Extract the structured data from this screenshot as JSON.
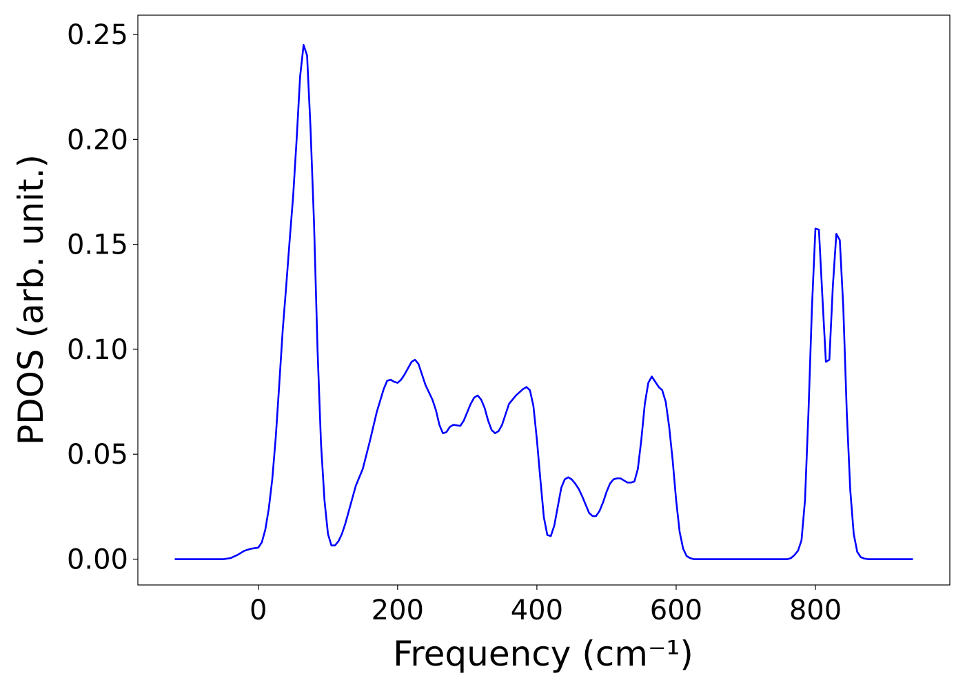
{
  "chart_data": {
    "type": "line",
    "x_label": "Frequency (cm⁻¹)",
    "y_label": "PDOS (arb. unit.)",
    "x": [
      -120,
      -100,
      -80,
      -60,
      -50,
      -40,
      -30,
      -20,
      -10,
      0,
      5,
      10,
      15,
      20,
      25,
      30,
      35,
      40,
      45,
      50,
      55,
      60,
      65,
      70,
      75,
      80,
      85,
      90,
      95,
      100,
      105,
      110,
      115,
      120,
      125,
      130,
      135,
      140,
      150,
      160,
      170,
      180,
      185,
      190,
      195,
      200,
      205,
      210,
      215,
      220,
      225,
      230,
      235,
      240,
      250,
      255,
      260,
      265,
      270,
      275,
      280,
      290,
      295,
      300,
      305,
      310,
      315,
      320,
      325,
      330,
      335,
      340,
      345,
      350,
      355,
      360,
      370,
      380,
      385,
      390,
      395,
      400,
      405,
      410,
      415,
      420,
      425,
      430,
      435,
      440,
      445,
      450,
      455,
      460,
      465,
      470,
      475,
      480,
      485,
      490,
      495,
      500,
      505,
      510,
      515,
      520,
      525,
      530,
      535,
      540,
      545,
      550,
      555,
      560,
      565,
      570,
      575,
      580,
      585,
      590,
      595,
      600,
      605,
      610,
      615,
      620,
      625,
      700,
      760,
      765,
      770,
      775,
      780,
      785,
      790,
      795,
      800,
      805,
      810,
      815,
      820,
      825,
      830,
      835,
      840,
      845,
      850,
      855,
      860,
      865,
      870,
      875,
      940
    ],
    "series": [
      {
        "name": "PDOS",
        "color": "#0000ff",
        "values": [
          0,
          0,
          0,
          0,
          0,
          0.0005,
          0.002,
          0.004,
          0.005,
          0.0055,
          0.008,
          0.014,
          0.024,
          0.038,
          0.058,
          0.083,
          0.109,
          0.13,
          0.152,
          0.173,
          0.2,
          0.23,
          0.245,
          0.24,
          0.205,
          0.16,
          0.1,
          0.055,
          0.028,
          0.012,
          0.0065,
          0.0065,
          0.0085,
          0.012,
          0.017,
          0.023,
          0.029,
          0.035,
          0.043,
          0.056,
          0.07,
          0.081,
          0.085,
          0.0855,
          0.0845,
          0.084,
          0.0855,
          0.088,
          0.091,
          0.094,
          0.095,
          0.093,
          0.088,
          0.083,
          0.076,
          0.071,
          0.064,
          0.06,
          0.0605,
          0.063,
          0.064,
          0.0635,
          0.066,
          0.07,
          0.074,
          0.077,
          0.078,
          0.076,
          0.072,
          0.066,
          0.0615,
          0.06,
          0.061,
          0.064,
          0.069,
          0.074,
          0.078,
          0.081,
          0.082,
          0.0805,
          0.073,
          0.057,
          0.038,
          0.02,
          0.0115,
          0.011,
          0.016,
          0.025,
          0.034,
          0.038,
          0.039,
          0.038,
          0.036,
          0.0335,
          0.03,
          0.026,
          0.022,
          0.0205,
          0.0205,
          0.023,
          0.027,
          0.032,
          0.036,
          0.038,
          0.0385,
          0.0385,
          0.0375,
          0.0365,
          0.0365,
          0.037,
          0.043,
          0.057,
          0.074,
          0.084,
          0.087,
          0.0845,
          0.082,
          0.0805,
          0.075,
          0.063,
          0.047,
          0.028,
          0.013,
          0.005,
          0.0015,
          0.0005,
          0,
          0,
          0,
          0.0005,
          0.002,
          0.004,
          0.009,
          0.028,
          0.07,
          0.12,
          0.1575,
          0.157,
          0.125,
          0.094,
          0.095,
          0.13,
          0.155,
          0.152,
          0.12,
          0.07,
          0.033,
          0.012,
          0.0035,
          0.001,
          0.0003,
          0,
          0
        ]
      }
    ],
    "xlim": [
      -173,
      993
    ],
    "ylim": [
      -0.0123,
      0.2592
    ],
    "xticks": [
      0,
      200,
      400,
      600,
      800
    ],
    "yticks": [
      {
        "value": 0,
        "label": "0.00"
      },
      {
        "value": 0.05,
        "label": "0.05"
      },
      {
        "value": 0.1,
        "label": "0.10"
      },
      {
        "value": 0.15,
        "label": "0.15"
      },
      {
        "value": 0.2,
        "label": "0.20"
      },
      {
        "value": 0.25,
        "label": "0.25"
      }
    ],
    "grid": false
  }
}
